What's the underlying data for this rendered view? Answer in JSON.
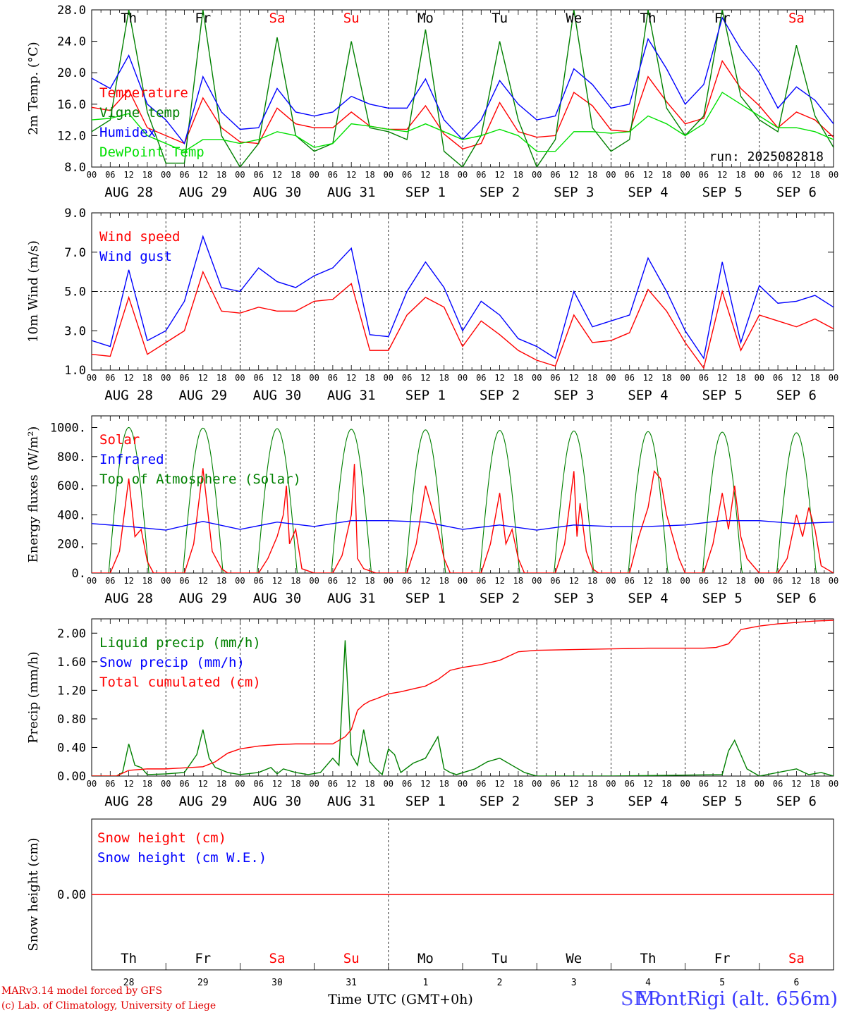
{
  "chart_data": [
    {
      "type": "line",
      "ylabel": "2m Temp. (°C)",
      "ylim": [
        8,
        28
      ],
      "yticks": [
        "8.0",
        "12.0",
        "16.0",
        "20.0",
        "24.0",
        "28.0"
      ],
      "x_unit": "hours since Aug 28 00 UTC",
      "run_label": "run: 2025082818",
      "series": [
        {
          "name": "Temperature",
          "color": "#ff0000",
          "x": [
            0,
            6,
            12,
            18,
            24,
            30,
            36,
            42,
            48,
            54,
            60,
            66,
            72,
            78,
            84,
            90,
            96,
            102,
            108,
            114,
            120,
            126,
            132,
            138,
            144,
            150,
            156,
            162,
            168,
            174,
            180,
            186,
            192,
            198,
            204,
            210,
            216,
            222,
            228,
            234,
            240
          ],
          "y": [
            15.6,
            15.2,
            17.8,
            13.0,
            12.0,
            11.0,
            16.8,
            13.0,
            11.2,
            11.0,
            15.5,
            13.5,
            13.0,
            13.0,
            15.0,
            13.2,
            12.8,
            12.8,
            15.8,
            12.2,
            10.3,
            11.0,
            16.2,
            12.5,
            11.8,
            12.0,
            17.5,
            15.8,
            12.7,
            12.5,
            19.5,
            16.3,
            13.5,
            14.2,
            21.5,
            18.0,
            15.8,
            13.0,
            15.0,
            14.0,
            11.8
          ]
        },
        {
          "name": "Vigne temp",
          "color": "#008000",
          "x": [
            0,
            6,
            12,
            18,
            24,
            30,
            36,
            42,
            48,
            54,
            60,
            66,
            72,
            78,
            84,
            90,
            96,
            102,
            108,
            114,
            120,
            126,
            132,
            138,
            144,
            150,
            156,
            162,
            168,
            174,
            180,
            186,
            192,
            198,
            204,
            210,
            216,
            222,
            228,
            234,
            240
          ],
          "y": [
            12.5,
            14.0,
            28.0,
            15.0,
            8.5,
            8.5,
            28.0,
            12.0,
            8.0,
            11.0,
            24.5,
            12.0,
            10.0,
            11.0,
            24.0,
            13.0,
            12.5,
            11.5,
            25.5,
            10.0,
            8.0,
            12.0,
            24.0,
            14.0,
            8.0,
            11.5,
            28.0,
            13.0,
            10.0,
            11.5,
            28.0,
            15.5,
            12.0,
            14.5,
            28.0,
            17.0,
            14.0,
            12.5,
            23.5,
            14.5,
            10.5
          ]
        },
        {
          "name": "Humidex",
          "color": "#0000ff",
          "x": [
            0,
            6,
            12,
            18,
            24,
            30,
            36,
            42,
            48,
            54,
            60,
            66,
            72,
            78,
            84,
            90,
            96,
            102,
            108,
            114,
            120,
            126,
            132,
            138,
            144,
            150,
            156,
            162,
            168,
            174,
            180,
            186,
            192,
            198,
            204,
            210,
            216,
            222,
            228,
            234,
            240
          ],
          "y": [
            19.3,
            18.0,
            22.2,
            16.0,
            14.0,
            11.0,
            19.5,
            15.0,
            12.8,
            13.0,
            18.0,
            15.0,
            14.5,
            15.0,
            17.0,
            16.0,
            15.5,
            15.5,
            19.2,
            14.0,
            11.5,
            14.0,
            19.0,
            16.0,
            14.0,
            14.5,
            20.5,
            18.5,
            15.5,
            16.0,
            24.3,
            20.5,
            16.0,
            18.5,
            27.0,
            23.0,
            20.0,
            15.5,
            18.2,
            16.5,
            13.5
          ]
        },
        {
          "name": "DewPoint Temp",
          "color": "#00e000",
          "x": [
            0,
            6,
            12,
            18,
            24,
            30,
            36,
            42,
            48,
            54,
            60,
            66,
            72,
            78,
            84,
            90,
            96,
            102,
            108,
            114,
            120,
            126,
            132,
            138,
            144,
            150,
            156,
            162,
            168,
            174,
            180,
            186,
            192,
            198,
            204,
            210,
            216,
            222,
            228,
            234,
            240
          ],
          "y": [
            14.0,
            14.2,
            14.8,
            12.0,
            11.0,
            10.0,
            11.5,
            11.5,
            11.0,
            11.5,
            12.5,
            12.0,
            10.5,
            11.0,
            13.5,
            13.2,
            12.8,
            12.5,
            13.5,
            12.5,
            11.5,
            12.0,
            12.8,
            12.0,
            10.0,
            10.0,
            12.5,
            12.5,
            12.3,
            12.5,
            14.5,
            13.5,
            12.0,
            13.5,
            17.5,
            16.0,
            14.5,
            13.0,
            13.0,
            12.5,
            11.5
          ]
        }
      ]
    },
    {
      "type": "line",
      "ylabel": "10m Wind (m/s)",
      "ylim": [
        1,
        9
      ],
      "yticks": [
        "1.0",
        "3.0",
        "5.0",
        "7.0",
        "9.0"
      ],
      "series": [
        {
          "name": "Wind speed",
          "color": "#ff0000",
          "x": [
            0,
            6,
            12,
            18,
            24,
            30,
            36,
            42,
            48,
            54,
            60,
            66,
            72,
            78,
            84,
            90,
            96,
            102,
            108,
            114,
            120,
            126,
            132,
            138,
            144,
            150,
            156,
            162,
            168,
            174,
            180,
            186,
            192,
            198,
            204,
            210,
            216,
            222,
            228,
            234,
            240
          ],
          "y": [
            1.8,
            1.7,
            4.7,
            1.8,
            2.4,
            3.0,
            6.0,
            4.0,
            3.9,
            4.2,
            4.0,
            4.0,
            4.5,
            4.6,
            5.4,
            2.0,
            2.0,
            3.8,
            4.7,
            4.2,
            2.2,
            3.5,
            2.8,
            2.0,
            1.5,
            1.2,
            3.8,
            2.4,
            2.5,
            2.9,
            5.1,
            4.0,
            2.4,
            1.1,
            5.0,
            2.0,
            3.8,
            3.5,
            3.2,
            3.6,
            3.1
          ]
        },
        {
          "name": "Wind gust",
          "color": "#0000ff",
          "x": [
            0,
            6,
            12,
            18,
            24,
            30,
            36,
            42,
            48,
            54,
            60,
            66,
            72,
            78,
            84,
            90,
            96,
            102,
            108,
            114,
            120,
            126,
            132,
            138,
            144,
            150,
            156,
            162,
            168,
            174,
            180,
            186,
            192,
            198,
            204,
            210,
            216,
            222,
            228,
            234,
            240
          ],
          "y": [
            2.5,
            2.2,
            6.1,
            2.5,
            3.0,
            4.5,
            7.8,
            5.2,
            5.0,
            6.2,
            5.5,
            5.2,
            5.8,
            6.2,
            7.2,
            2.8,
            2.7,
            5.0,
            6.5,
            5.2,
            3.0,
            4.5,
            3.8,
            2.6,
            2.2,
            1.6,
            5.0,
            3.2,
            3.5,
            3.8,
            6.7,
            5.0,
            3.0,
            1.6,
            6.5,
            2.4,
            5.3,
            4.4,
            4.5,
            4.8,
            4.2
          ]
        }
      ]
    },
    {
      "type": "line",
      "ylabel": "Energy fluxes (W/m²)",
      "ylim": [
        0,
        1080
      ],
      "yticks": [
        "0.",
        "200.",
        "400.",
        "600.",
        "800.",
        "1000."
      ],
      "series": [
        {
          "name": "Solar",
          "color": "#ff0000",
          "x": [
            0,
            6,
            9,
            12,
            14,
            16,
            18,
            20,
            24,
            30,
            33,
            36,
            39,
            42,
            44,
            48,
            54,
            57,
            60,
            62,
            63,
            64,
            66,
            68,
            72,
            78,
            81,
            84,
            85,
            86,
            88,
            92,
            96,
            102,
            105,
            108,
            110,
            112,
            114,
            116,
            120,
            126,
            129,
            132,
            134,
            136,
            138,
            140,
            144,
            150,
            153,
            156,
            157,
            158,
            160,
            162,
            164,
            168,
            174,
            177,
            180,
            182,
            184,
            186,
            190,
            192,
            198,
            201,
            204,
            206,
            208,
            210,
            212,
            216,
            222,
            225,
            228,
            230,
            232,
            234,
            236,
            240
          ],
          "y": [
            0,
            0,
            150,
            650,
            250,
            300,
            80,
            0,
            0,
            0,
            200,
            720,
            150,
            30,
            0,
            0,
            0,
            100,
            250,
            400,
            600,
            200,
            300,
            30,
            0,
            0,
            120,
            400,
            750,
            100,
            30,
            0,
            0,
            0,
            200,
            600,
            450,
            300,
            100,
            0,
            0,
            0,
            200,
            550,
            200,
            300,
            100,
            0,
            0,
            0,
            200,
            700,
            250,
            480,
            150,
            30,
            0,
            0,
            0,
            250,
            450,
            700,
            650,
            400,
            100,
            0,
            0,
            200,
            550,
            300,
            600,
            250,
            100,
            0,
            0,
            100,
            400,
            250,
            450,
            300,
            50,
            0
          ]
        },
        {
          "name": "Infrared",
          "color": "#0000ff",
          "x": [
            0,
            12,
            24,
            36,
            48,
            60,
            72,
            84,
            96,
            108,
            120,
            132,
            144,
            156,
            168,
            180,
            192,
            204,
            216,
            228,
            240
          ],
          "y": [
            340,
            320,
            295,
            355,
            300,
            350,
            320,
            360,
            360,
            350,
            300,
            330,
            295,
            330,
            320,
            320,
            330,
            360,
            360,
            340,
            350
          ]
        },
        {
          "name": "Top of Atmosphere (Solar)",
          "color": "#008000",
          "x": [],
          "y": []
        }
      ]
    },
    {
      "type": "line",
      "ylabel": "Precip (mm/h)",
      "ylim": [
        0,
        2.2
      ],
      "yticks": [
        "0.00",
        "0.40",
        "0.80",
        "1.20",
        "1.60",
        "2.00"
      ],
      "series": [
        {
          "name": "Liquid precip (mm/h)",
          "color": "#008000",
          "x": [
            0,
            8,
            10,
            12,
            14,
            16,
            18,
            24,
            30,
            34,
            36,
            38,
            40,
            44,
            48,
            54,
            58,
            60,
            62,
            66,
            70,
            74,
            78,
            80,
            82,
            84,
            86,
            88,
            90,
            92,
            94,
            96,
            98,
            100,
            104,
            108,
            112,
            114,
            116,
            118,
            124,
            128,
            132,
            136,
            140,
            144,
            168,
            204,
            206,
            208,
            210,
            212,
            216,
            228,
            232,
            236,
            240
          ],
          "y": [
            0,
            0,
            0.05,
            0.45,
            0.15,
            0.12,
            0.02,
            0.03,
            0.05,
            0.3,
            0.65,
            0.25,
            0.12,
            0.05,
            0.02,
            0.05,
            0.12,
            0.03,
            0.1,
            0.05,
            0.02,
            0.05,
            0.25,
            0.15,
            1.9,
            0.3,
            0.15,
            0.65,
            0.2,
            0.1,
            0.02,
            0.38,
            0.3,
            0.05,
            0.18,
            0.25,
            0.55,
            0.1,
            0.05,
            0.02,
            0.1,
            0.2,
            0.25,
            0.15,
            0.05,
            0.0,
            0.0,
            0.02,
            0.35,
            0.5,
            0.3,
            0.1,
            0.0,
            0.1,
            0.02,
            0.05,
            0.0
          ]
        },
        {
          "name": "Snow precip (mm/h)",
          "color": "#0000ff",
          "x": [],
          "y": []
        },
        {
          "name": "Total cumulated (cm)",
          "color": "#ff0000",
          "x": [
            0,
            8,
            12,
            18,
            24,
            36,
            40,
            44,
            48,
            54,
            60,
            66,
            72,
            78,
            80,
            82,
            84,
            86,
            88,
            90,
            92,
            96,
            100,
            104,
            108,
            112,
            116,
            120,
            126,
            132,
            138,
            144,
            156,
            168,
            180,
            192,
            198,
            202,
            206,
            210,
            216,
            222,
            228,
            234,
            240
          ],
          "y": [
            0,
            0,
            0.08,
            0.1,
            0.1,
            0.13,
            0.2,
            0.32,
            0.38,
            0.42,
            0.44,
            0.45,
            0.45,
            0.45,
            0.5,
            0.55,
            0.65,
            0.92,
            1.0,
            1.05,
            1.08,
            1.15,
            1.18,
            1.22,
            1.26,
            1.35,
            1.48,
            1.52,
            1.56,
            1.62,
            1.74,
            1.76,
            1.77,
            1.78,
            1.79,
            1.79,
            1.79,
            1.8,
            1.85,
            2.05,
            2.1,
            2.13,
            2.15,
            2.17,
            2.18
          ]
        }
      ]
    },
    {
      "type": "line",
      "ylabel": "Snow height (cm)",
      "yticks": [
        "0.00"
      ],
      "series": [
        {
          "name": "Snow height (cm)",
          "color": "#ff0000",
          "x": [
            0,
            240
          ],
          "y": [
            0,
            0
          ]
        },
        {
          "name": "Snow height (cm W.E.)",
          "color": "#0000ff",
          "x": [],
          "y": []
        }
      ]
    }
  ],
  "day_labels": [
    {
      "label": "Th",
      "color": "#000000"
    },
    {
      "label": "Fr",
      "color": "#000000"
    },
    {
      "label": "Sa",
      "color": "#ff0000"
    },
    {
      "label": "Su",
      "color": "#ff0000"
    },
    {
      "label": "Mo",
      "color": "#000000"
    },
    {
      "label": "Tu",
      "color": "#000000"
    },
    {
      "label": "We",
      "color": "#000000"
    },
    {
      "label": "Th",
      "color": "#000000"
    },
    {
      "label": "Fr",
      "color": "#000000"
    },
    {
      "label": "Sa",
      "color": "#ff0000"
    }
  ],
  "date_labels": [
    "AUG 28",
    "AUG 29",
    "AUG 30",
    "AUG 31",
    "SEP  1",
    "SEP  2",
    "SEP  3",
    "SEP  4",
    "SEP  5",
    "SEP  6"
  ],
  "hour_labels": [
    "00",
    "06",
    "12",
    "18"
  ],
  "last_hour_label": "00",
  "bottom_day_numbers": [
    "28",
    "29",
    "30",
    "31",
    "1",
    "2",
    "3",
    "4",
    "5",
    "6"
  ],
  "footer": {
    "credit_line1": "MARv3.14 model forced by GFS",
    "credit_line2": "(c) Lab. of Climatology, University of Liege",
    "time_axis_label": "Time UTC (GMT+0h)",
    "station": "MontRigi (alt. 656m)",
    "overlap_month": "SEP"
  }
}
